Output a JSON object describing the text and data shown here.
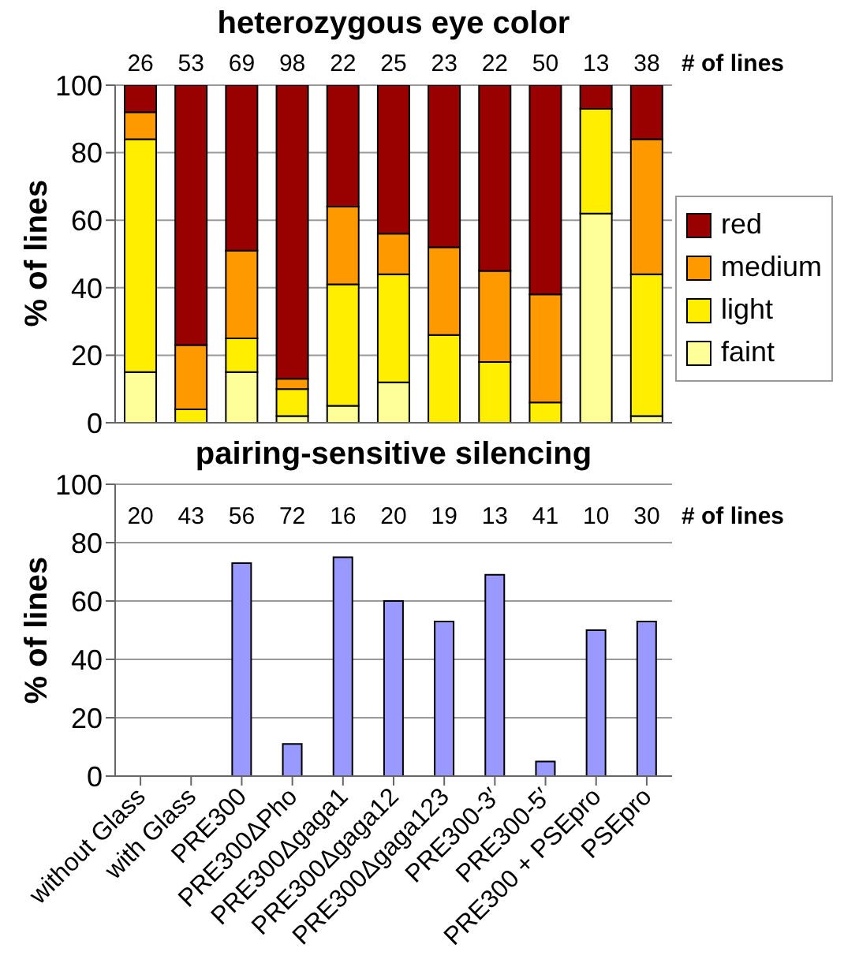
{
  "chart_data": [
    {
      "type": "bar",
      "title": "heterozygous eye color",
      "ylabel": "% of lines",
      "categories": [
        null,
        null,
        null,
        null,
        null,
        null,
        null,
        null,
        null,
        null,
        null
      ],
      "stacked": true,
      "series": [
        {
          "name": "faint",
          "color": "#ffff99",
          "values": [
            15,
            0,
            15,
            2,
            5,
            12,
            0,
            0,
            0,
            62,
            2
          ]
        },
        {
          "name": "light",
          "color": "#ffee00",
          "values": [
            69,
            4,
            10,
            8,
            36,
            32,
            26,
            18,
            6,
            31,
            42
          ]
        },
        {
          "name": "medium",
          "color": "#ff9900",
          "values": [
            8,
            19,
            26,
            3,
            23,
            12,
            26,
            27,
            32,
            0,
            40
          ]
        },
        {
          "name": "red",
          "color": "#990000",
          "values": [
            8,
            77,
            49,
            87,
            36,
            44,
            48,
            55,
            62,
            7,
            16
          ]
        }
      ],
      "ylim": [
        0,
        100
      ],
      "yticks": [
        0,
        20,
        40,
        60,
        80,
        100
      ],
      "grid": "y",
      "legend": "right",
      "tick_labels": "y",
      "annotations": [
        "26",
        "53",
        "69",
        "98",
        "22",
        "25",
        "23",
        "22",
        "50",
        "13",
        "38",
        "# of lines"
      ]
    },
    {
      "type": "bar",
      "title": "pairing-sensitive silencing",
      "ylabel": "% of lines",
      "categories": [
        "without Glass",
        "with Glass",
        "PRE300",
        "PRE300ΔPho",
        "PRE300Δgaga1",
        "PRE300Δgaga12",
        "PRE300Δgaga123",
        "PRE300-3′",
        "PRE300-5′",
        "PRE300 + PSEpro",
        "PSEpro"
      ],
      "values": [
        0,
        0,
        73,
        11,
        75,
        60,
        53,
        69,
        5,
        50,
        53
      ],
      "color": "#9999ff",
      "ylim": [
        0,
        100
      ],
      "yticks": [
        0,
        20,
        40,
        60,
        80,
        100
      ],
      "grid": "y",
      "annotations": [
        "20",
        "43",
        "56",
        "72",
        "16",
        "20",
        "19",
        "13",
        "41",
        "10",
        "30",
        "# of lines"
      ]
    }
  ]
}
